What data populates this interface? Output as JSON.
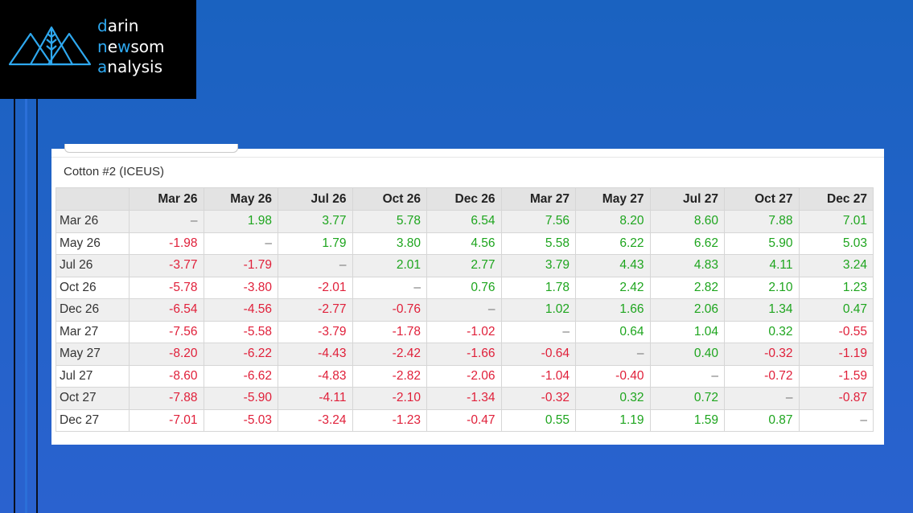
{
  "brand": {
    "line1_accent": "d",
    "line1_rest": "arin",
    "line2_accent": "n",
    "line2_rest": "e",
    "line2_accent2": "w",
    "line2_rest2": "som",
    "line3_accent": "a",
    "line3_rest": "nalysis",
    "accent_color": "#2ea8ef"
  },
  "panel": {
    "title": "Cotton #2 (ICEUS)"
  },
  "colors": {
    "positive": "#1ea51e",
    "negative": "#e0203a",
    "header_bg": "#e3e3e3"
  },
  "spread_table": {
    "columns": [
      "Mar 26",
      "May 26",
      "Jul 26",
      "Oct 26",
      "Dec 26",
      "Mar 27",
      "May 27",
      "Jul 27",
      "Oct 27",
      "Dec 27"
    ],
    "rows": [
      {
        "label": "Mar 26",
        "values": [
          "–",
          "1.98",
          "3.77",
          "5.78",
          "6.54",
          "7.56",
          "8.20",
          "8.60",
          "7.88",
          "7.01"
        ]
      },
      {
        "label": "May 26",
        "values": [
          "-1.98",
          "–",
          "1.79",
          "3.80",
          "4.56",
          "5.58",
          "6.22",
          "6.62",
          "5.90",
          "5.03"
        ]
      },
      {
        "label": "Jul 26",
        "values": [
          "-3.77",
          "-1.79",
          "–",
          "2.01",
          "2.77",
          "3.79",
          "4.43",
          "4.83",
          "4.11",
          "3.24"
        ]
      },
      {
        "label": "Oct 26",
        "values": [
          "-5.78",
          "-3.80",
          "-2.01",
          "–",
          "0.76",
          "1.78",
          "2.42",
          "2.82",
          "2.10",
          "1.23"
        ]
      },
      {
        "label": "Dec 26",
        "values": [
          "-6.54",
          "-4.56",
          "-2.77",
          "-0.76",
          "–",
          "1.02",
          "1.66",
          "2.06",
          "1.34",
          "0.47"
        ]
      },
      {
        "label": "Mar 27",
        "values": [
          "-7.56",
          "-5.58",
          "-3.79",
          "-1.78",
          "-1.02",
          "–",
          "0.64",
          "1.04",
          "0.32",
          "-0.55"
        ]
      },
      {
        "label": "May 27",
        "values": [
          "-8.20",
          "-6.22",
          "-4.43",
          "-2.42",
          "-1.66",
          "-0.64",
          "–",
          "0.40",
          "-0.32",
          "-1.19"
        ]
      },
      {
        "label": "Jul 27",
        "values": [
          "-8.60",
          "-6.62",
          "-4.83",
          "-2.82",
          "-2.06",
          "-1.04",
          "-0.40",
          "–",
          "-0.72",
          "-1.59"
        ]
      },
      {
        "label": "Oct 27",
        "values": [
          "-7.88",
          "-5.90",
          "-4.11",
          "-2.10",
          "-1.34",
          "-0.32",
          "0.32",
          "0.72",
          "–",
          "-0.87"
        ]
      },
      {
        "label": "Dec 27",
        "values": [
          "-7.01",
          "-5.03",
          "-3.24",
          "-1.23",
          "-0.47",
          "0.55",
          "1.19",
          "1.59",
          "0.87",
          "–"
        ]
      }
    ]
  }
}
